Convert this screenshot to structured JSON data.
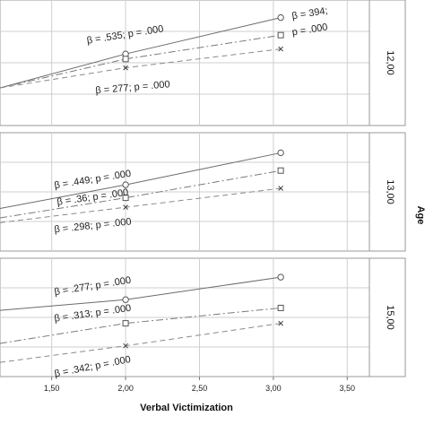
{
  "chart_data": {
    "type": "line",
    "xlabel": "Verbal Victimization",
    "x_ticks": [
      "1,50",
      "2,00",
      "2,50",
      "3,00",
      "3,50"
    ],
    "x_tick_values": [
      1.5,
      2.0,
      2.5,
      3.0,
      3.5
    ],
    "xlim": [
      1.15,
      3.65
    ],
    "facet_title": "Age",
    "grid": true,
    "panels": [
      {
        "label": "12,00",
        "ylim": [
          0,
          1
        ],
        "series": [
          {
            "marker": "circle",
            "x": [
              1.15,
              2.0,
              3.05
            ],
            "y": [
              0.3,
              0.57,
              0.86
            ]
          },
          {
            "marker": "square",
            "x": [
              1.15,
              2.0,
              3.05
            ],
            "y": [
              0.3,
              0.53,
              0.72
            ]
          },
          {
            "marker": "x",
            "x": [
              1.15,
              2.0,
              3.05
            ],
            "y": [
              0.3,
              0.46,
              0.61
            ]
          }
        ],
        "annotations": [
          {
            "text": "β = .535; p = .000",
            "x": 2.0,
            "y": 0.7,
            "rotate": -9
          },
          {
            "text": "β = 394;",
            "x": 3.25,
            "y": 0.87,
            "rotate": -9
          },
          {
            "text": "p = .000",
            "x": 3.25,
            "y": 0.74,
            "rotate": -9
          },
          {
            "text": "β = 277; p = .000",
            "x": 2.05,
            "y": 0.28,
            "rotate": -5
          }
        ]
      },
      {
        "label": "13,00",
        "ylim": [
          0,
          1
        ],
        "series": [
          {
            "marker": "circle",
            "x": [
              1.15,
              2.0,
              3.05
            ],
            "y": [
              0.36,
              0.56,
              0.83
            ]
          },
          {
            "marker": "square",
            "x": [
              1.15,
              2.0,
              3.05
            ],
            "y": [
              0.28,
              0.45,
              0.68
            ]
          },
          {
            "marker": "x",
            "x": [
              1.15,
              2.0,
              3.05
            ],
            "y": [
              0.24,
              0.37,
              0.53
            ]
          }
        ],
        "annotations": [
          {
            "text": "β = .449; p = .000",
            "x": 1.78,
            "y": 0.58,
            "rotate": -9
          },
          {
            "text": "β = .36; p = .000",
            "x": 1.78,
            "y": 0.43,
            "rotate": -8
          },
          {
            "text": "β = .298; p = .000",
            "x": 1.78,
            "y": 0.19,
            "rotate": -6
          }
        ]
      },
      {
        "label": "15,00",
        "ylim": [
          0,
          1
        ],
        "series": [
          {
            "marker": "circle",
            "x": [
              1.15,
              2.0,
              3.05
            ],
            "y": [
              0.56,
              0.65,
              0.84
            ]
          },
          {
            "marker": "square",
            "x": [
              1.15,
              2.0,
              3.05
            ],
            "y": [
              0.28,
              0.45,
              0.58
            ]
          },
          {
            "marker": "x",
            "x": [
              1.15,
              2.0,
              3.05
            ],
            "y": [
              0.12,
              0.26,
              0.45
            ]
          }
        ],
        "annotations": [
          {
            "text": "β = .277; p = .000",
            "x": 1.78,
            "y": 0.74,
            "rotate": -9
          },
          {
            "text": "β = .313; p = .000",
            "x": 1.78,
            "y": 0.51,
            "rotate": -8
          },
          {
            "text": "β = .342; p = .000",
            "x": 1.78,
            "y": 0.06,
            "rotate": -11
          }
        ]
      }
    ]
  }
}
